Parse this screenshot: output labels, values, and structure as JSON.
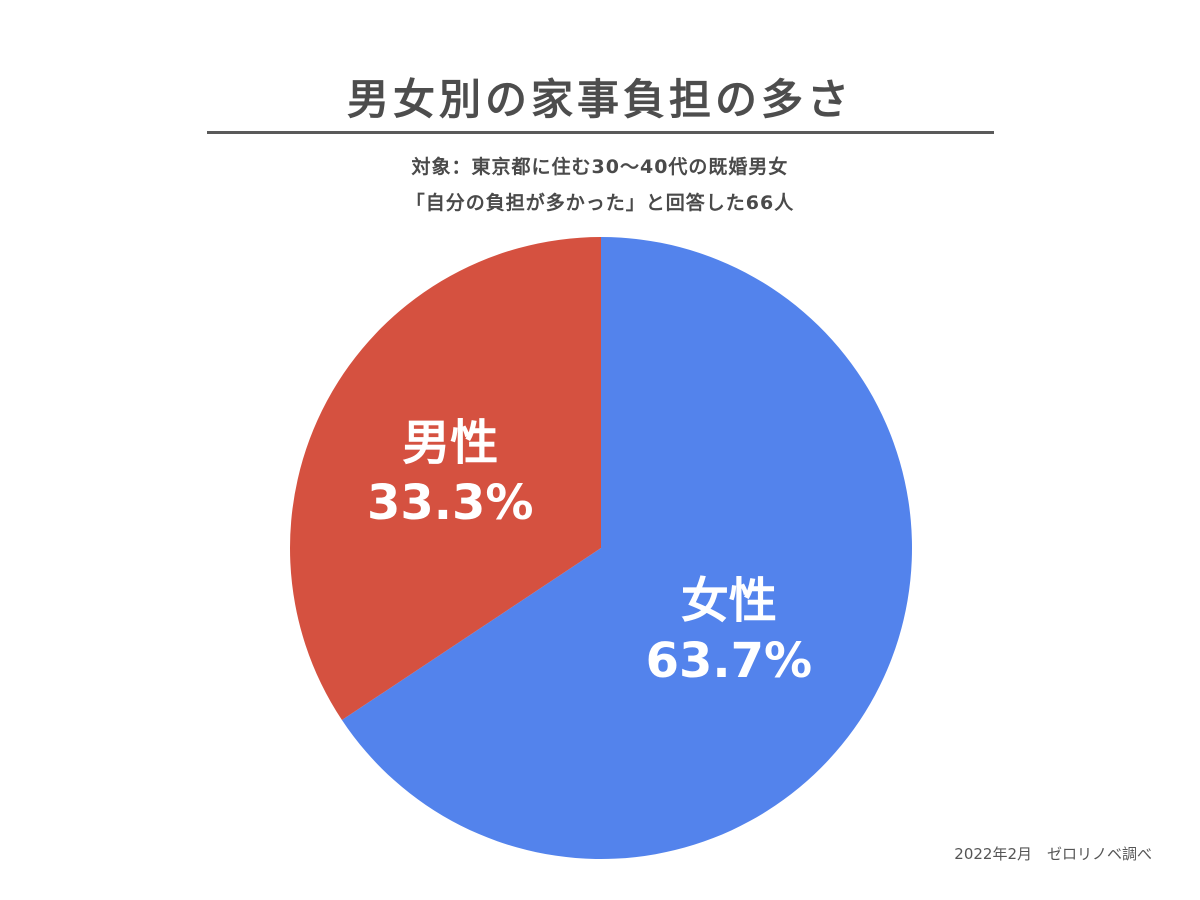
{
  "title": "男女別の家事負担の多さ",
  "subtitle_line1": "対象：東京都に住む30〜40代の既婚男女",
  "subtitle_line2": "「自分の負担が多かった」と回答した66人",
  "source": "2022年2月　ゼロリノベ調べ",
  "chart_data": {
    "type": "pie",
    "categories": [
      "女性",
      "男性"
    ],
    "values": [
      63.7,
      33.3
    ],
    "value_labels": [
      "63.7%",
      "33.3%"
    ],
    "colors": [
      "#5383EC",
      "#D55140"
    ],
    "start": "12 o'clock, clockwise"
  }
}
